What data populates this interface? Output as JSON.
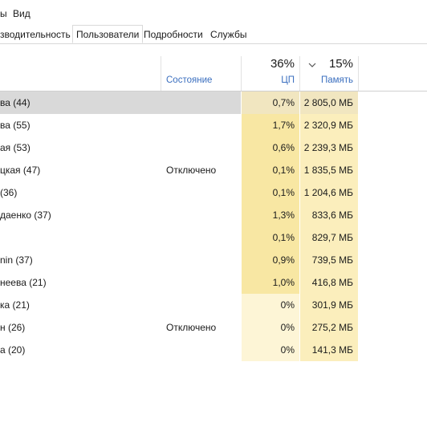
{
  "menu": {
    "item1": "ы",
    "item2": "Вид"
  },
  "tabs": [
    {
      "label": "зводительность"
    },
    {
      "label": "Пользователи"
    },
    {
      "label": "Подробности"
    },
    {
      "label": "Службы"
    }
  ],
  "header": {
    "status_label": "Состояние",
    "cpu_pct": "36%",
    "cpu_label": "ЦП",
    "mem_sort_icon": "chevron-down-icon",
    "mem_pct": "15%",
    "mem_label": "Память"
  },
  "colors": {
    "selected_row": "#d9d9d9",
    "heat_strong": "#f8e7a3",
    "heat_medium": "#fbeebc",
    "heat_light": "#fdf5d6",
    "mem_heat": "#fbeebc",
    "label_blue": "#3b6fbf"
  },
  "rows": [
    {
      "name": "ва (44)",
      "status": "",
      "cpu": "0,7%",
      "mem": "2 805,0 МБ",
      "selected": true
    },
    {
      "name": "ва (55)",
      "status": "",
      "cpu": "1,7%",
      "mem": "2 320,9 МБ"
    },
    {
      "name": "ая (53)",
      "status": "",
      "cpu": "0,6%",
      "mem": "2 239,3 МБ"
    },
    {
      "name": "цкая (47)",
      "status": "Отключено",
      "cpu": "0,1%",
      "mem": "1 835,5 МБ"
    },
    {
      "name": "(36)",
      "status": "",
      "cpu": "0,1%",
      "mem": "1 204,6 МБ"
    },
    {
      "name": "даенко (37)",
      "status": "",
      "cpu": "1,3%",
      "mem": "833,6 МБ"
    },
    {
      "name": "",
      "status": "",
      "cpu": "0,1%",
      "mem": "829,7 МБ"
    },
    {
      "name": "nin (37)",
      "status": "",
      "cpu": "0,9%",
      "mem": "739,5 МБ"
    },
    {
      "name": "неева (21)",
      "status": "",
      "cpu": "1,0%",
      "mem": "416,8 МБ"
    },
    {
      "name": "ка (21)",
      "status": "",
      "cpu": "0%",
      "mem": "301,9 МБ"
    },
    {
      "name": "н (26)",
      "status": "Отключено",
      "cpu": "0%",
      "mem": "275,2 МБ"
    },
    {
      "name": "а (20)",
      "status": "",
      "cpu": "0%",
      "mem": "141,3 МБ"
    }
  ]
}
